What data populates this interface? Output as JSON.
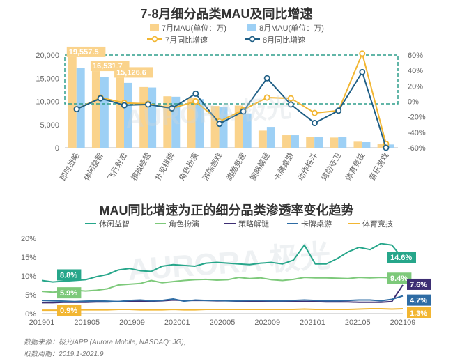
{
  "chart_data": [
    {
      "type": "bar",
      "title": "7-8月细分品类MAU及同比增速",
      "categories": [
        "即时战略",
        "休闲益智",
        "飞行射击",
        "模拟经营",
        "扑克棋牌",
        "角色扮演",
        "消除游戏",
        "跑酷竞速",
        "策略解谜",
        "卡牌桌游",
        "动作格斗",
        "塔防守卫",
        "体育竞技",
        "音乐游戏"
      ],
      "series": [
        {
          "name": "7月MAU(单位：万)",
          "axis": "left",
          "type": "bar",
          "color": "#FAD38C",
          "values": [
            19557.5,
            16531.7,
            15126.6,
            13100,
            11100,
            10800,
            9000,
            9100,
            3700,
            2700,
            2400,
            2200,
            1300,
            900
          ]
        },
        {
          "name": "8月MAU(单位：万)",
          "axis": "left",
          "type": "bar",
          "color": "#9DD0F5",
          "values": [
            17200,
            15200,
            14000,
            13000,
            11000,
            10500,
            8800,
            7400,
            4500,
            2700,
            2300,
            2400,
            1200,
            700
          ]
        },
        {
          "name": "7月同比增速",
          "axis": "right",
          "type": "line",
          "color": "#F2B632",
          "values": [
            -10,
            5,
            -2,
            -3,
            -9,
            0,
            -26,
            -11,
            5,
            4,
            -15,
            -12,
            62,
            -55
          ]
        },
        {
          "name": "8月同比增速",
          "axis": "right",
          "type": "line",
          "color": "#1F5F86",
          "values": [
            -10,
            4,
            -5,
            -4,
            -9,
            10,
            -29,
            -13,
            30,
            -4,
            -28,
            -12,
            38,
            -60
          ]
        }
      ],
      "data_labels": [
        "19,557.5",
        "16,531.7",
        "15,126.6"
      ],
      "ylim": [
        0,
        20000
      ],
      "yticks": [
        "0",
        "5,000",
        "10,000",
        "15,000",
        "20,000"
      ],
      "y2lim": [
        -60,
        60
      ],
      "y2ticks": [
        "-60%",
        "-40%",
        "-20%",
        "0%",
        "20%",
        "40%",
        "60%"
      ]
    },
    {
      "type": "line",
      "title": "MAU同比增速为正的细分品类渗透率变化趋势",
      "x_ticks": [
        "201901",
        "201905",
        "201909",
        "202001",
        "202005",
        "202009",
        "202101",
        "202105",
        "202109"
      ],
      "ylim": [
        0,
        20
      ],
      "yticks": [
        "0%",
        "5%",
        "10%",
        "15%",
        "20%"
      ],
      "series": [
        {
          "name": "休闲益智",
          "color": "#26A68A",
          "start_label": "8.8%",
          "end_label": "14.6%",
          "values": [
            8.8,
            8.4,
            8.6,
            8.8,
            9.0,
            9.8,
            10.4,
            11.6,
            12.0,
            11.4,
            11.2,
            12.6,
            13.0,
            12.8,
            12.6,
            13.4,
            13.6,
            13.4,
            13.2,
            13.0,
            13.4,
            13.6,
            13.2,
            14.2,
            18.2,
            13.2,
            13.2,
            14.6,
            16.4,
            17.6,
            17.0,
            18.6,
            18.2,
            14.6
          ]
        },
        {
          "name": "角色扮演",
          "color": "#7DC97A",
          "start_label": "5.9%",
          "end_label": "9.4%",
          "values": [
            5.9,
            5.7,
            5.9,
            6.2,
            6.0,
            6.2,
            6.6,
            7.6,
            7.8,
            8.0,
            8.8,
            8.2,
            8.5,
            8.8,
            9.0,
            9.1,
            8.9,
            9.0,
            9.6,
            9.3,
            9.5,
            9.0,
            8.8,
            9.1,
            9.6,
            9.5,
            9.5,
            9.4,
            9.3,
            9.6,
            9.5,
            9.6,
            9.5,
            9.4
          ]
        },
        {
          "name": "策略解谜",
          "color": "#3D2E73",
          "start_label": "",
          "end_label": "7.6%",
          "values": [
            2.9,
            2.9,
            3.0,
            3.0,
            3.0,
            3.1,
            3.1,
            3.2,
            3.2,
            3.3,
            3.3,
            3.4,
            3.6,
            3.5,
            3.5,
            3.5,
            3.4,
            3.4,
            3.3,
            3.3,
            3.3,
            3.2,
            3.2,
            3.2,
            3.2,
            3.2,
            3.1,
            3.1,
            3.1,
            3.0,
            3.0,
            3.0,
            3.2,
            7.6
          ]
        },
        {
          "name": "卡牌桌游",
          "color": "#2E6CA4",
          "start_label": "",
          "end_label": "4.7%",
          "values": [
            3.5,
            3.4,
            3.3,
            3.2,
            3.3,
            3.4,
            3.3,
            3.2,
            3.5,
            3.6,
            3.4,
            3.5,
            3.9,
            3.3,
            3.6,
            3.5,
            3.5,
            3.4,
            3.4,
            3.5,
            3.5,
            3.4,
            3.4,
            3.5,
            3.6,
            3.5,
            3.4,
            3.4,
            3.5,
            3.6,
            3.6,
            3.4,
            3.8,
            4.7
          ]
        },
        {
          "name": "体育竞技",
          "color": "#F2B632",
          "start_label": "0.9%",
          "end_label": "1.3%",
          "values": [
            0.9,
            0.9,
            0.9,
            1.0,
            1.0,
            1.0,
            1.0,
            1.1,
            1.1,
            1.0,
            1.0,
            1.0,
            1.1,
            1.0,
            1.0,
            1.1,
            1.1,
            1.1,
            1.1,
            1.1,
            1.1,
            1.1,
            1.1,
            1.1,
            1.2,
            1.1,
            1.1,
            1.1,
            1.1,
            1.2,
            1.3,
            1.3,
            1.2,
            1.3
          ]
        }
      ]
    }
  ],
  "watermark": {
    "text": "AURORA 极光"
  },
  "footer": {
    "source": "数据来源：极光iAPP (Aurora Mobile, NASDAQ: JG);",
    "period": "取数周期：2019.1-2021.9"
  }
}
